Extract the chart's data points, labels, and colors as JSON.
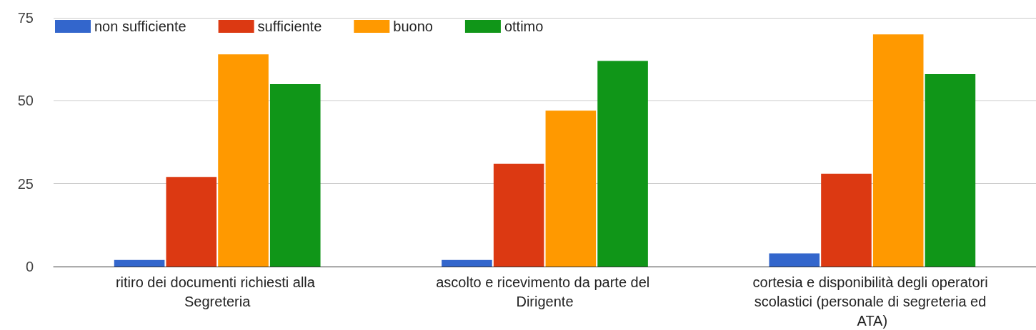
{
  "chart_data": {
    "type": "bar",
    "categories": [
      "ritiro dei documenti richiesti alla Segreteria",
      "ascolto e ricevimento da parte del Dirigente",
      "cortesia e disponibilità degli operatori scolastici (personale di segreteria ed ATA)"
    ],
    "series": [
      {
        "name": "non sufficiente",
        "color": "#3366cc",
        "values": [
          2,
          2,
          4
        ]
      },
      {
        "name": "sufficiente",
        "color": "#dc3912",
        "values": [
          27,
          31,
          28
        ]
      },
      {
        "name": "buono",
        "color": "#ff9900",
        "values": [
          64,
          47,
          70
        ]
      },
      {
        "name": "ottimo",
        "color": "#109618",
        "values": [
          55,
          62,
          58
        ]
      }
    ],
    "ylim": [
      0,
      75
    ],
    "yticks": [
      0,
      25,
      50,
      75
    ],
    "grid": "y",
    "legend": "top left"
  }
}
